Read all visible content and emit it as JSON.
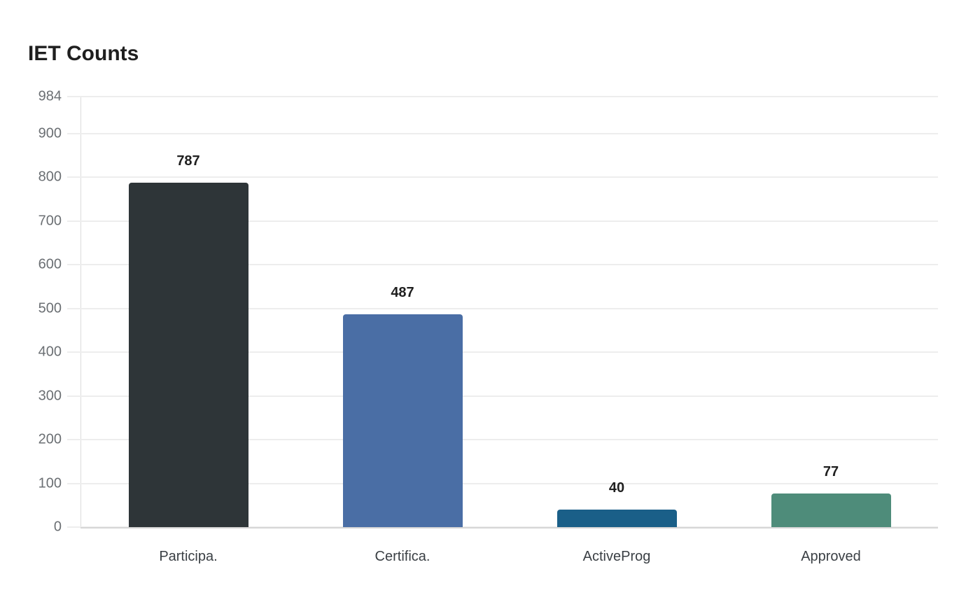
{
  "chart_data": {
    "type": "bar",
    "title": "IET Counts",
    "categories": [
      "Participa.",
      "Certifica.",
      "ActiveProg",
      "Approved"
    ],
    "values": [
      787,
      487,
      40,
      77
    ],
    "colors": [
      "#2e3538",
      "#4a6ea5",
      "#1a5f88",
      "#4e8c7a"
    ],
    "xlabel": "",
    "ylabel": "",
    "ylim": [
      0,
      984
    ],
    "yticks": [
      0,
      100,
      200,
      300,
      400,
      500,
      600,
      700,
      800,
      900,
      984
    ],
    "grid": true,
    "legend": null
  }
}
